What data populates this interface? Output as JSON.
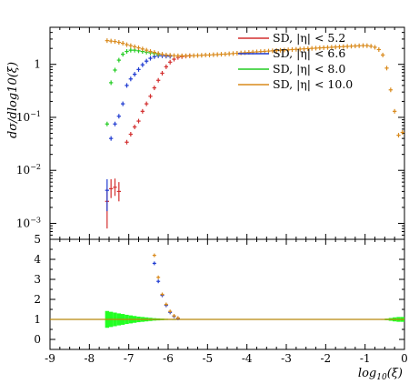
{
  "chart_data": [
    {
      "type": "scatter",
      "panel": "main",
      "ylabel": "dσ/dlog10(ξ)",
      "yscale": "log",
      "ylim": [
        0.0005,
        5
      ],
      "xlim": [
        -9,
        0
      ],
      "yticks": [
        {
          "value": 0.001,
          "base": "10",
          "exp": "−3"
        },
        {
          "value": 0.01,
          "base": "10",
          "exp": "−2"
        },
        {
          "value": 0.1,
          "base": "10",
          "exp": "−1"
        },
        {
          "value": 1,
          "base": "1",
          "exp": ""
        }
      ],
      "legend_position": "top-right",
      "series": [
        {
          "name": "SD, |η| < 5.2",
          "color": "#d32f2f",
          "points": [
            {
              "x": -7.55,
              "y": 0.0026,
              "ylo": 0.0008,
              "yhi": 0.0045
            },
            {
              "x": -7.45,
              "y": 0.0045,
              "ylo": 0.003,
              "yhi": 0.0068
            },
            {
              "x": -7.35,
              "y": 0.0048,
              "ylo": 0.0033,
              "yhi": 0.007
            },
            {
              "x": -7.25,
              "y": 0.004,
              "ylo": 0.0026,
              "yhi": 0.006
            },
            {
              "x": -7.05,
              "y": 0.034
            },
            {
              "x": -6.95,
              "y": 0.048
            },
            {
              "x": -6.85,
              "y": 0.066
            },
            {
              "x": -6.75,
              "y": 0.085
            },
            {
              "x": -6.65,
              "y": 0.13
            },
            {
              "x": -6.55,
              "y": 0.18
            },
            {
              "x": -6.45,
              "y": 0.25
            },
            {
              "x": -6.35,
              "y": 0.36
            },
            {
              "x": -6.25,
              "y": 0.5
            },
            {
              "x": -6.15,
              "y": 0.68
            },
            {
              "x": -6.05,
              "y": 0.9
            },
            {
              "x": -5.95,
              "y": 1.1
            },
            {
              "x": -5.85,
              "y": 1.25
            },
            {
              "x": -5.75,
              "y": 1.35
            },
            {
              "x": -5.65,
              "y": 1.4
            },
            {
              "x": -5.55,
              "y": 1.43
            },
            {
              "x": -5.45,
              "y": 1.45
            }
          ]
        },
        {
          "name": "SD, |η| < 6.6",
          "color": "#1f3bd1",
          "points": [
            {
              "x": -7.55,
              "y": 0.0042,
              "ylo": 0.0017,
              "yhi": 0.0068
            },
            {
              "x": -7.45,
              "y": 0.04
            },
            {
              "x": -7.35,
              "y": 0.075
            },
            {
              "x": -7.25,
              "y": 0.105
            },
            {
              "x": -7.15,
              "y": 0.18
            },
            {
              "x": -7.05,
              "y": 0.4
            },
            {
              "x": -6.95,
              "y": 0.53
            },
            {
              "x": -6.85,
              "y": 0.65
            },
            {
              "x": -6.75,
              "y": 0.8
            },
            {
              "x": -6.65,
              "y": 0.98
            },
            {
              "x": -6.55,
              "y": 1.15
            },
            {
              "x": -6.45,
              "y": 1.3
            },
            {
              "x": -6.35,
              "y": 1.4
            },
            {
              "x": -6.25,
              "y": 1.45
            },
            {
              "x": -6.15,
              "y": 1.45
            },
            {
              "x": -6.05,
              "y": 1.43
            },
            {
              "x": -5.95,
              "y": 1.42
            }
          ]
        },
        {
          "name": "SD, |η| < 8.0",
          "color": "#22cc22",
          "points": [
            {
              "x": -7.55,
              "y": 0.075
            },
            {
              "x": -7.45,
              "y": 0.45
            },
            {
              "x": -7.35,
              "y": 0.78
            },
            {
              "x": -7.25,
              "y": 1.2
            },
            {
              "x": -7.15,
              "y": 1.55
            },
            {
              "x": -7.05,
              "y": 1.75
            },
            {
              "x": -6.95,
              "y": 1.85
            },
            {
              "x": -6.85,
              "y": 1.85
            },
            {
              "x": -6.75,
              "y": 1.8
            },
            {
              "x": -6.65,
              "y": 1.75
            },
            {
              "x": -6.55,
              "y": 1.7
            },
            {
              "x": -6.45,
              "y": 1.65
            },
            {
              "x": -6.35,
              "y": 1.6
            },
            {
              "x": -6.25,
              "y": 1.55
            }
          ]
        },
        {
          "name": "SD, |η| < 10.0",
          "color": "#d98a1c",
          "points": [
            {
              "x": -7.55,
              "y": 2.8
            },
            {
              "x": -7.45,
              "y": 2.75
            },
            {
              "x": -7.35,
              "y": 2.7
            },
            {
              "x": -7.25,
              "y": 2.6
            },
            {
              "x": -7.15,
              "y": 2.5
            },
            {
              "x": -7.05,
              "y": 2.35
            },
            {
              "x": -6.95,
              "y": 2.25
            },
            {
              "x": -6.85,
              "y": 2.15
            },
            {
              "x": -6.75,
              "y": 2.05
            },
            {
              "x": -6.65,
              "y": 1.95
            },
            {
              "x": -6.55,
              "y": 1.85
            },
            {
              "x": -6.45,
              "y": 1.75
            },
            {
              "x": -6.35,
              "y": 1.68
            },
            {
              "x": -6.25,
              "y": 1.6
            },
            {
              "x": -6.15,
              "y": 1.55
            },
            {
              "x": -6.05,
              "y": 1.5
            },
            {
              "x": -5.95,
              "y": 1.48
            },
            {
              "x": -5.85,
              "y": 1.46
            },
            {
              "x": -5.75,
              "y": 1.45
            },
            {
              "x": -5.65,
              "y": 1.45
            },
            {
              "x": -5.55,
              "y": 1.45
            },
            {
              "x": -5.45,
              "y": 1.45
            },
            {
              "x": -5.35,
              "y": 1.46
            },
            {
              "x": -5.25,
              "y": 1.47
            },
            {
              "x": -5.15,
              "y": 1.48
            },
            {
              "x": -5.05,
              "y": 1.5
            },
            {
              "x": -4.95,
              "y": 1.5
            },
            {
              "x": -4.85,
              "y": 1.52
            },
            {
              "x": -4.75,
              "y": 1.53
            },
            {
              "x": -4.65,
              "y": 1.55
            },
            {
              "x": -4.55,
              "y": 1.56
            },
            {
              "x": -4.45,
              "y": 1.58
            },
            {
              "x": -4.35,
              "y": 1.6
            },
            {
              "x": -4.25,
              "y": 1.62
            },
            {
              "x": -4.15,
              "y": 1.64
            },
            {
              "x": -4.05,
              "y": 1.66
            },
            {
              "x": -3.95,
              "y": 1.68
            },
            {
              "x": -3.85,
              "y": 1.7
            },
            {
              "x": -3.75,
              "y": 1.72
            },
            {
              "x": -3.65,
              "y": 1.74
            },
            {
              "x": -3.55,
              "y": 1.76
            },
            {
              "x": -3.45,
              "y": 1.78
            },
            {
              "x": -3.35,
              "y": 1.8
            },
            {
              "x": -3.25,
              "y": 1.82
            },
            {
              "x": -3.15,
              "y": 1.84
            },
            {
              "x": -3.05,
              "y": 1.86
            },
            {
              "x": -2.95,
              "y": 1.88
            },
            {
              "x": -2.85,
              "y": 1.9
            },
            {
              "x": -2.75,
              "y": 1.92
            },
            {
              "x": -2.65,
              "y": 1.94
            },
            {
              "x": -2.55,
              "y": 1.96
            },
            {
              "x": -2.45,
              "y": 1.98
            },
            {
              "x": -2.35,
              "y": 2.0
            },
            {
              "x": -2.25,
              "y": 2.02
            },
            {
              "x": -2.15,
              "y": 2.04
            },
            {
              "x": -2.05,
              "y": 2.06
            },
            {
              "x": -1.95,
              "y": 2.08
            },
            {
              "x": -1.85,
              "y": 2.1
            },
            {
              "x": -1.75,
              "y": 2.12
            },
            {
              "x": -1.65,
              "y": 2.14
            },
            {
              "x": -1.55,
              "y": 2.16
            },
            {
              "x": -1.45,
              "y": 2.18
            },
            {
              "x": -1.35,
              "y": 2.2
            },
            {
              "x": -1.25,
              "y": 2.22
            },
            {
              "x": -1.15,
              "y": 2.24
            },
            {
              "x": -1.05,
              "y": 2.26
            },
            {
              "x": -0.95,
              "y": 2.25
            },
            {
              "x": -0.85,
              "y": 2.2
            },
            {
              "x": -0.75,
              "y": 2.1
            },
            {
              "x": -0.65,
              "y": 1.9
            },
            {
              "x": -0.55,
              "y": 1.5
            },
            {
              "x": -0.45,
              "y": 0.85
            },
            {
              "x": -0.35,
              "y": 0.33
            },
            {
              "x": -0.25,
              "y": 0.13
            },
            {
              "x": -0.15,
              "y": 0.046
            },
            {
              "x": -0.05,
              "y": 0.052
            }
          ]
        }
      ]
    },
    {
      "type": "scatter",
      "panel": "ratio",
      "ylim": [
        -0.5,
        5
      ],
      "yticks": [
        "0",
        "1",
        "2",
        "3",
        "4",
        "5"
      ],
      "xlabel": "log10(ξ)",
      "xlabel_base": "log",
      "xlabel_sub": "10",
      "xlabel_arg": "(ξ)",
      "xlim": [
        -9,
        0
      ],
      "xticks": [
        "-9",
        "-8",
        "-7",
        "-6",
        "-5",
        "-4",
        "-3",
        "-2",
        "-1",
        "0"
      ],
      "reference_line": 1,
      "band": {
        "color": "#22ff22",
        "points": [
          {
            "x": -7.55,
            "half": 0.42
          },
          {
            "x": -7.45,
            "half": 0.38
          },
          {
            "x": -7.35,
            "half": 0.34
          },
          {
            "x": -7.25,
            "half": 0.3
          },
          {
            "x": -7.15,
            "half": 0.27
          },
          {
            "x": -7.05,
            "half": 0.23
          },
          {
            "x": -6.95,
            "half": 0.2
          },
          {
            "x": -6.85,
            "half": 0.17
          },
          {
            "x": -6.75,
            "half": 0.14
          },
          {
            "x": -6.65,
            "half": 0.12
          },
          {
            "x": -6.55,
            "half": 0.1
          },
          {
            "x": -6.45,
            "half": 0.08
          },
          {
            "x": -6.35,
            "half": 0.06
          },
          {
            "x": -6.25,
            "half": 0.05
          },
          {
            "x": -6.15,
            "half": 0.04
          },
          {
            "x": -6.05,
            "half": 0.03
          },
          {
            "x": -5.95,
            "half": 0.02
          },
          {
            "x": -5.85,
            "half": 0.015
          },
          {
            "x": -0.55,
            "half": 0.02
          },
          {
            "x": -0.45,
            "half": 0.04
          },
          {
            "x": -0.35,
            "half": 0.07
          },
          {
            "x": -0.25,
            "half": 0.1
          },
          {
            "x": -0.15,
            "half": 0.12
          },
          {
            "x": -0.05,
            "half": 0.12
          }
        ]
      },
      "series": [
        {
          "name": "SD, |η| < 6.6",
          "color": "#1f3bd1",
          "points": [
            {
              "x": -6.35,
              "y": 3.8
            },
            {
              "x": -6.25,
              "y": 2.9
            },
            {
              "x": -6.15,
              "y": 2.2
            },
            {
              "x": -6.05,
              "y": 1.7
            },
            {
              "x": -5.95,
              "y": 1.35
            },
            {
              "x": -5.85,
              "y": 1.15
            },
            {
              "x": -5.75,
              "y": 1.05
            }
          ]
        },
        {
          "name": "SD, |η| < 10.0",
          "color": "#d98a1c",
          "points": [
            {
              "x": -6.35,
              "y": 4.2
            },
            {
              "x": -6.25,
              "y": 3.1
            },
            {
              "x": -6.15,
              "y": 2.25
            },
            {
              "x": -6.05,
              "y": 1.75
            },
            {
              "x": -5.95,
              "y": 1.4
            },
            {
              "x": -5.85,
              "y": 1.18
            },
            {
              "x": -5.75,
              "y": 1.07
            }
          ]
        }
      ]
    }
  ]
}
